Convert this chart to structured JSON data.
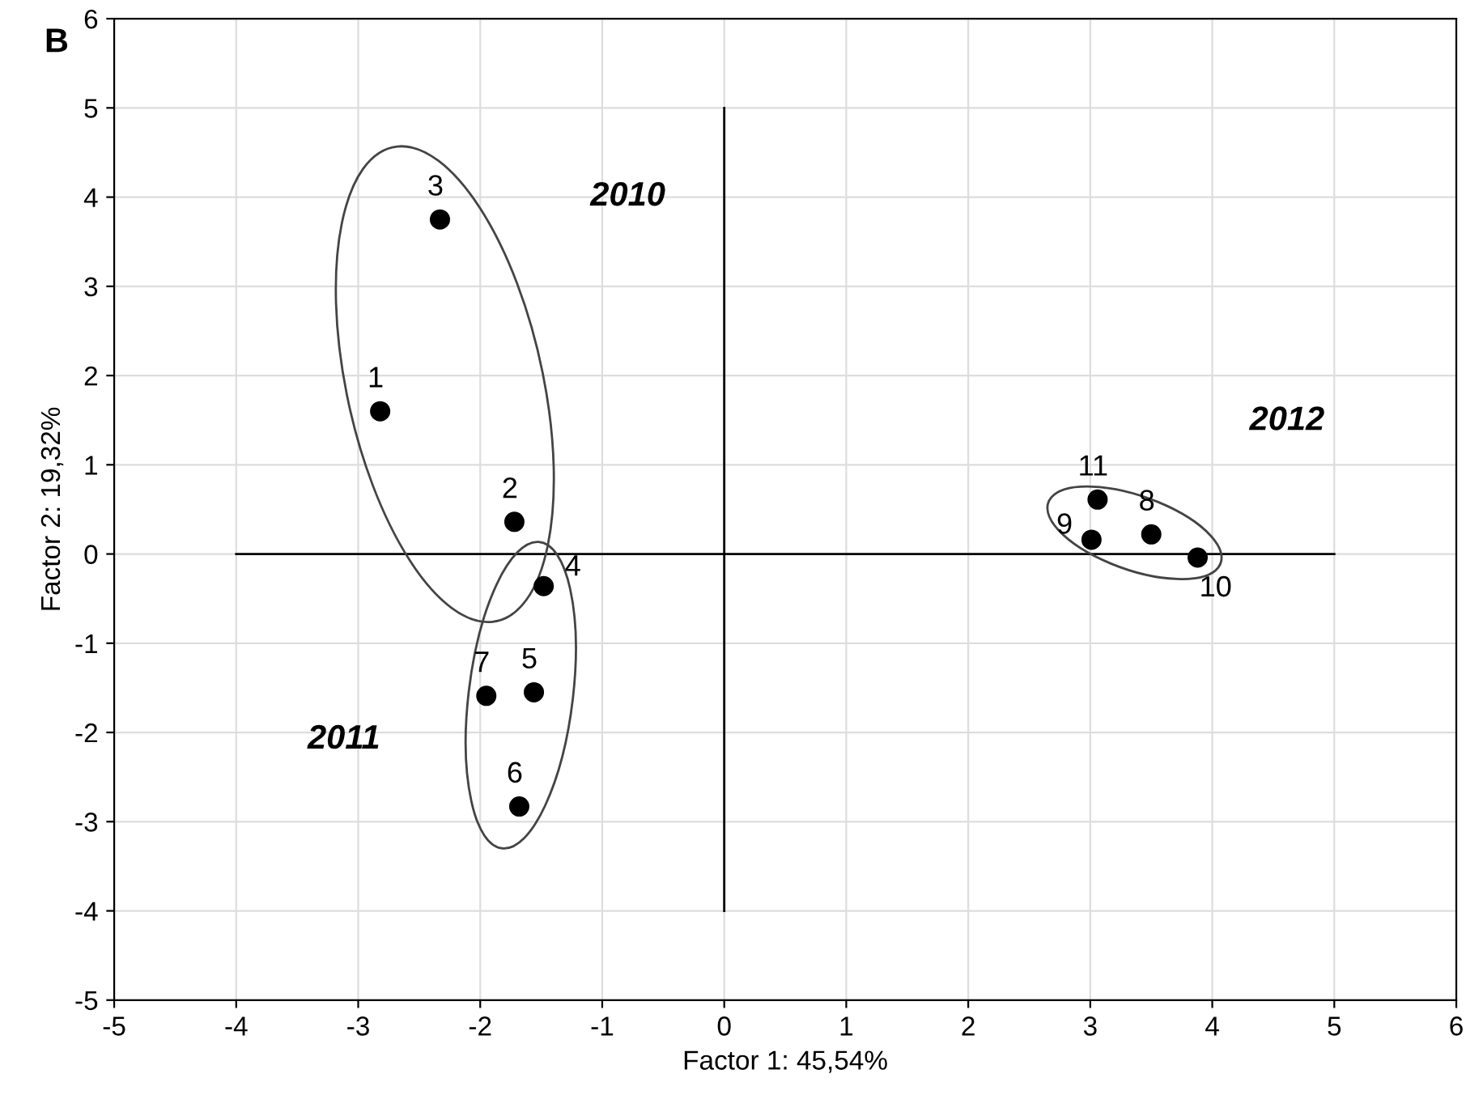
{
  "chart_data": {
    "type": "scatter",
    "title": "B",
    "xlabel": "Factor 1: 45,54%",
    "ylabel": "Factor 2: 19,32%",
    "series": [
      {
        "type": "line",
        "marker": "none",
        "color": "#000000",
        "x": [
          -4,
          5
        ],
        "values": [
          0,
          0
        ]
      },
      {
        "type": "line",
        "marker": "none",
        "color": "#000000",
        "x": [
          0,
          0
        ],
        "values": [
          -4,
          5
        ]
      },
      {
        "color": "#000000",
        "x": [
          -2.82,
          -1.72,
          -2.33
        ],
        "values": [
          1.6,
          0.36,
          3.75
        ]
      },
      {
        "color": "#000000",
        "x": [
          -1.48,
          -1.56,
          -1.68,
          -1.95
        ],
        "values": [
          -0.36,
          -1.55,
          -2.83,
          -1.59
        ]
      },
      {
        "color": "#000000",
        "x": [
          3.5,
          3.01,
          3.88,
          3.06
        ],
        "values": [
          0.22,
          0.16,
          -0.04,
          0.61
        ]
      }
    ],
    "annotations": [
      {
        "text": "1",
        "x": -2.82,
        "y": 1.6
      },
      {
        "text": "2",
        "x": -1.72,
        "y": 0.36
      },
      {
        "text": "3",
        "x": -2.33,
        "y": 3.75
      },
      {
        "text": "4",
        "x": -1.48,
        "y": -0.36
      },
      {
        "text": "5",
        "x": -1.56,
        "y": -1.55
      },
      {
        "text": "6",
        "x": -1.68,
        "y": -2.83
      },
      {
        "text": "7",
        "x": -1.95,
        "y": -1.59
      },
      {
        "text": "8",
        "x": 3.5,
        "y": 0.22
      },
      {
        "text": "9",
        "x": 3.01,
        "y": 0.16
      },
      {
        "text": "10",
        "x": 3.88,
        "y": -0.04
      },
      {
        "text": "11",
        "x": 3.06,
        "y": 0.61
      },
      "2010",
      "2011",
      "2012"
    ],
    "xlim": [
      -5,
      6
    ],
    "ylim": [
      -5,
      6
    ],
    "xticks": [
      -5,
      -4,
      -3,
      -2,
      -1,
      0,
      1,
      2,
      3,
      4,
      5,
      6
    ],
    "yticks": [
      -5,
      -4,
      -3,
      -2,
      -1,
      0,
      1,
      2,
      3,
      4,
      5,
      6
    ],
    "grid": true,
    "marker": "circle"
  }
}
